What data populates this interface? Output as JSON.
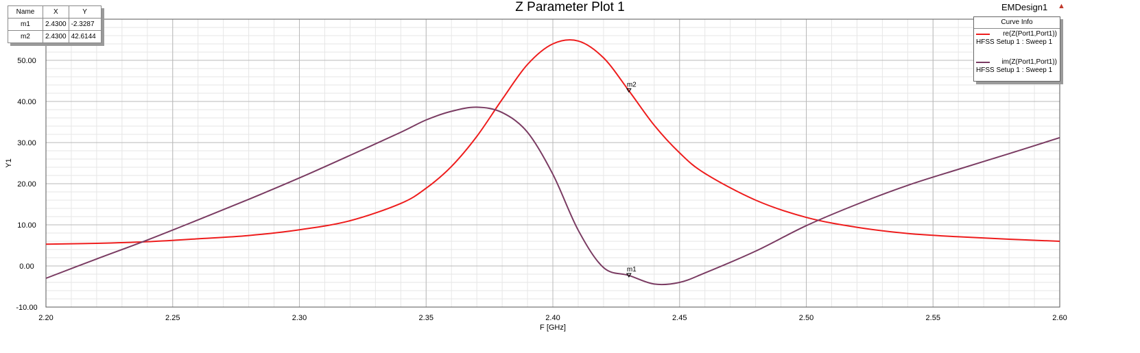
{
  "title": "Z Parameter Plot 1",
  "design_name": "EMDesign1",
  "corner_icon": "ansys-logo-icon",
  "marker_table": {
    "headers": [
      "Name",
      "X",
      "Y"
    ],
    "rows": [
      {
        "name": "m1",
        "x": "2.4300",
        "y": "-2.3287"
      },
      {
        "name": "m2",
        "x": "2.4300",
        "y": "42.6144"
      }
    ]
  },
  "curve_info": {
    "header": "Curve Info",
    "entries": [
      {
        "label": "re(Z(Port1,Port1))",
        "setup": "HFSS Setup 1 : Sweep 1",
        "color": "#ee1c1c"
      },
      {
        "label": "im(Z(Port1,Port1))",
        "setup": "HFSS Setup 1 : Sweep 1",
        "color": "#7a3b62"
      }
    ]
  },
  "chart_data": {
    "type": "line",
    "title": "Z Parameter Plot 1",
    "xlabel": "F [GHz]",
    "ylabel": "Y1",
    "xlim": [
      2.2,
      2.6
    ],
    "ylim": [
      -10,
      60
    ],
    "x_ticks": [
      "2.20",
      "2.25",
      "2.30",
      "2.35",
      "2.40",
      "2.45",
      "2.50",
      "2.55",
      "2.60"
    ],
    "y_ticks": [
      "-10.00",
      "0.00",
      "10.00",
      "20.00",
      "30.00",
      "40.00",
      "50.00"
    ],
    "grid": true,
    "legend_position": "top-right",
    "x": [
      2.2,
      2.22,
      2.24,
      2.26,
      2.28,
      2.3,
      2.32,
      2.34,
      2.35,
      2.36,
      2.37,
      2.38,
      2.39,
      2.4,
      2.41,
      2.42,
      2.43,
      2.44,
      2.45,
      2.46,
      2.48,
      2.5,
      2.52,
      2.54,
      2.56,
      2.58,
      2.6
    ],
    "series": [
      {
        "name": "re(Z(Port1,Port1))",
        "color": "#ee1c1c",
        "values": [
          5.3,
          5.5,
          5.9,
          6.6,
          7.4,
          8.8,
          11.0,
          15.2,
          18.9,
          24.2,
          31.5,
          40.5,
          49.0,
          54.0,
          54.7,
          50.6,
          42.6,
          34.2,
          27.5,
          22.5,
          16.0,
          11.8,
          9.4,
          7.9,
          7.1,
          6.5,
          6.0
        ]
      },
      {
        "name": "im(Z(Port1,Port1))",
        "color": "#7a3b62",
        "values": [
          -3.0,
          1.7,
          6.3,
          11.2,
          16.2,
          21.4,
          26.9,
          32.5,
          35.5,
          37.6,
          38.6,
          37.3,
          32.5,
          22.3,
          8.7,
          -0.4,
          -2.3,
          -4.4,
          -4.0,
          -1.7,
          3.6,
          9.8,
          15.0,
          19.6,
          23.5,
          27.3,
          31.2
        ]
      }
    ],
    "markers": [
      {
        "name": "m1",
        "x": 2.43,
        "y": -2.3287
      },
      {
        "name": "m2",
        "x": 2.43,
        "y": 42.6144
      }
    ]
  }
}
